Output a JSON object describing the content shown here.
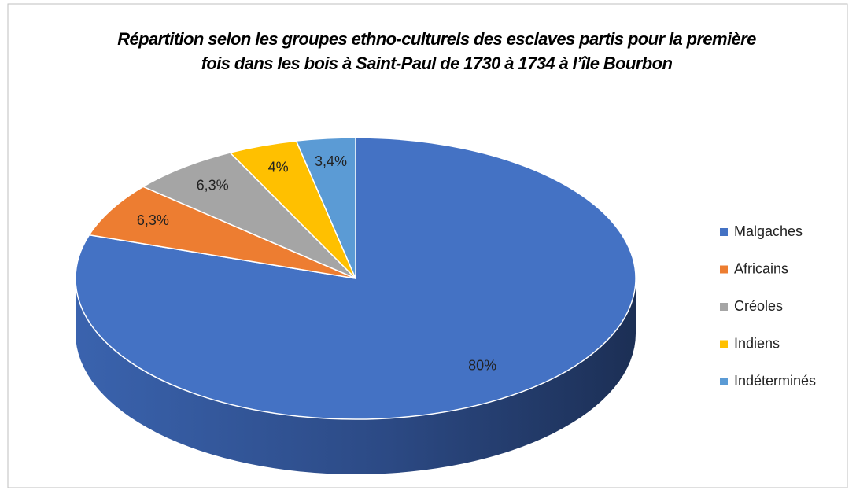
{
  "chart_data": {
    "type": "pie",
    "title": "Répartition selon les groupes ethno-culturels des esclaves partis pour la première fois dans les bois à Saint-Paul de 1730 à 1734 à l’île Bourbon",
    "categories": [
      "Malgaches",
      "Africains",
      "Créoles",
      "Indiens",
      "Indéterminés"
    ],
    "values": [
      80,
      6.3,
      6.3,
      4,
      3.4
    ],
    "value_labels": [
      "80%",
      "6,3%",
      "6,3%",
      "4%",
      "3,4%"
    ],
    "colors": [
      "#4472c4",
      "#ed7d31",
      "#a5a5a5",
      "#ffc000",
      "#5b9bd5"
    ],
    "legend": "right"
  }
}
